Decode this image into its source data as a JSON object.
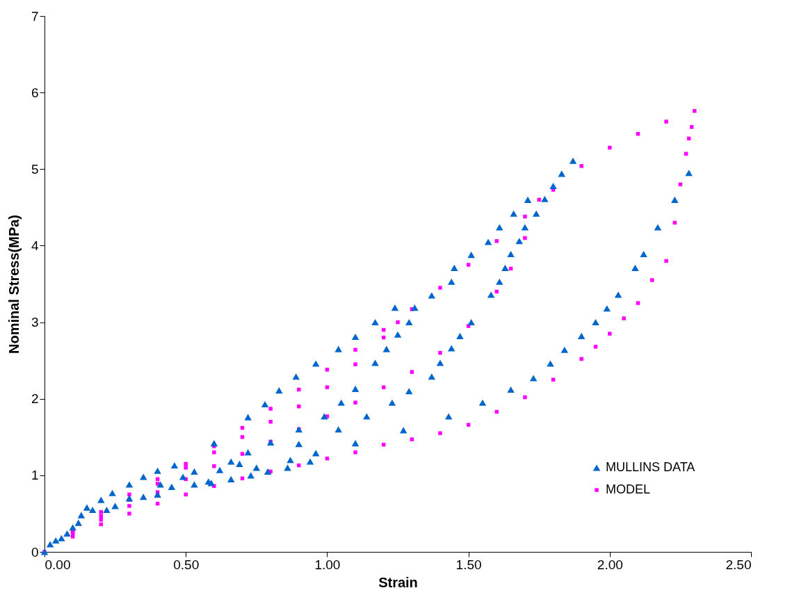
{
  "chart_data": {
    "type": "scatter",
    "xlabel": "Strain",
    "ylabel": "Nominal Stress(MPa)",
    "xlim": [
      0,
      2.5
    ],
    "ylim": [
      0,
      7
    ],
    "xticks": [
      {
        "value": 0,
        "label": "0.00"
      },
      {
        "value": 0.5,
        "label": "0.50"
      },
      {
        "value": 1,
        "label": "1.00"
      },
      {
        "value": 1.5,
        "label": "1.50"
      },
      {
        "value": 2,
        "label": "2.00"
      },
      {
        "value": 2.5,
        "label": "2.50"
      }
    ],
    "yticks": [
      0,
      1,
      2,
      3,
      4,
      5,
      6,
      7
    ],
    "grid": false,
    "legend": "bottom right",
    "series": [
      {
        "name": "MULLINS DATA",
        "color": "#0066cc",
        "marker": "triangle",
        "x": [
          0,
          0.02,
          0.04,
          0.06,
          0.08,
          0.1,
          0.12,
          0.13,
          0.15,
          0.17,
          0.2,
          0.22,
          0.24,
          0.25,
          0.3,
          0.3,
          0.35,
          0.35,
          0.4,
          0.4,
          0.41,
          0.45,
          0.46,
          0.49,
          0.53,
          0.53,
          0.58,
          0.59,
          0.6,
          0.62,
          0.66,
          0.66,
          0.69,
          0.72,
          0.72,
          0.73,
          0.75,
          0.78,
          0.79,
          0.8,
          0.83,
          0.86,
          0.87,
          0.89,
          0.9,
          0.9,
          0.94,
          0.96,
          0.96,
          0.99,
          1.04,
          1.04,
          1.05,
          1.1,
          1.1,
          1.1,
          1.14,
          1.17,
          1.17,
          1.21,
          1.23,
          1.24,
          1.25,
          1.27,
          1.29,
          1.29,
          1.31,
          1.37,
          1.37,
          1.4,
          1.43,
          1.44,
          1.44,
          1.45,
          1.47,
          1.51,
          1.51,
          1.55,
          1.57,
          1.58,
          1.61,
          1.61,
          1.63,
          1.65,
          1.65,
          1.66,
          1.68,
          1.7,
          1.71,
          1.73,
          1.74,
          1.77,
          1.79,
          1.8,
          1.83,
          1.84,
          1.87,
          1.9,
          1.95,
          1.99,
          2.03,
          2.09,
          2.12,
          2.17,
          2.23,
          2.28
        ],
        "values": [
          0,
          0.1,
          0.15,
          0.18,
          0.24,
          0.32,
          0.38,
          0.48,
          0.58,
          0.55,
          0.68,
          0.55,
          0.77,
          0.6,
          0.88,
          0.7,
          0.98,
          0.72,
          1.06,
          0.75,
          0.88,
          0.85,
          1.13,
          0.98,
          1.05,
          0.88,
          0.92,
          0.9,
          1.42,
          1.07,
          1.18,
          0.95,
          1.15,
          1.76,
          1.3,
          1.0,
          1.1,
          1.93,
          1.05,
          1.43,
          2.11,
          1.1,
          1.2,
          2.29,
          1.41,
          1.6,
          1.18,
          2.46,
          1.29,
          1.77,
          2.65,
          1.6,
          1.95,
          2.81,
          2.13,
          1.42,
          1.77,
          3.0,
          2.47,
          2.65,
          1.95,
          3.19,
          2.84,
          1.59,
          3.0,
          2.1,
          3.19,
          3.35,
          2.29,
          2.47,
          1.77,
          3.53,
          2.66,
          3.71,
          2.82,
          3.88,
          3.0,
          1.95,
          4.05,
          3.36,
          4.24,
          3.53,
          3.71,
          3.89,
          2.12,
          4.42,
          4.06,
          4.24,
          4.6,
          2.27,
          4.42,
          4.61,
          2.46,
          4.78,
          4.94,
          2.64,
          5.11,
          2.82,
          3.0,
          3.18,
          3.36,
          3.71,
          3.89,
          4.24,
          4.6,
          4.95
        ]
      },
      {
        "name": "MODEL",
        "color": "#ff00ff",
        "marker": "square",
        "x": [
          0,
          0.1,
          0.2,
          0.3,
          0.4,
          0.5,
          0.6,
          0.7,
          0.8,
          0.9,
          1.0,
          1.1,
          1.2,
          1.3,
          1.4,
          1.5,
          1.6,
          1.7,
          1.8,
          1.9,
          2.0,
          2.1,
          2.2,
          2.3,
          2.29,
          2.28,
          2.27,
          2.25,
          2.23,
          2.2,
          2.15,
          2.1,
          2.05,
          2.0,
          1.95,
          1.9,
          1.8,
          1.7,
          1.6,
          1.5,
          1.4,
          1.3,
          1.2,
          1.1,
          1.0,
          0.9,
          0.8,
          0.7,
          0.6,
          0.5,
          0.4,
          0.3,
          0.2,
          0.1,
          0.1,
          0.2,
          0.3,
          0.4,
          0.5,
          0.6,
          0.7,
          0.8,
          0.9,
          1.0,
          1.1,
          1.2,
          1.3,
          1.4,
          1.5,
          1.6,
          1.65,
          1.7,
          1.75,
          0.1,
          0.2,
          0.3,
          0.4,
          0.5,
          0.6,
          0.7,
          0.8,
          0.9,
          1.0,
          1.1,
          1.2,
          1.25
        ],
        "values": [
          0,
          0.28,
          0.52,
          0.75,
          0.95,
          1.15,
          1.38,
          1.62,
          1.87,
          2.12,
          2.38,
          2.64,
          2.9,
          3.17,
          3.45,
          3.75,
          4.06,
          4.38,
          4.73,
          5.04,
          5.28,
          5.46,
          5.62,
          5.76,
          5.55,
          5.4,
          5.2,
          4.8,
          4.3,
          3.8,
          3.55,
          3.25,
          3.05,
          2.85,
          2.68,
          2.52,
          2.25,
          2.02,
          1.83,
          1.66,
          1.55,
          1.47,
          1.4,
          1.3,
          1.22,
          1.13,
          1.05,
          0.96,
          0.86,
          0.75,
          0.63,
          0.5,
          0.36,
          0.2,
          0.24,
          0.42,
          0.6,
          0.78,
          0.95,
          1.12,
          1.28,
          1.44,
          1.6,
          1.77,
          1.95,
          2.15,
          2.35,
          2.6,
          2.95,
          3.4,
          3.7,
          4.1,
          4.6,
          0.26,
          0.47,
          0.68,
          0.89,
          1.1,
          1.3,
          1.5,
          1.7,
          1.9,
          2.15,
          2.45,
          2.8,
          3.0
        ]
      }
    ]
  }
}
